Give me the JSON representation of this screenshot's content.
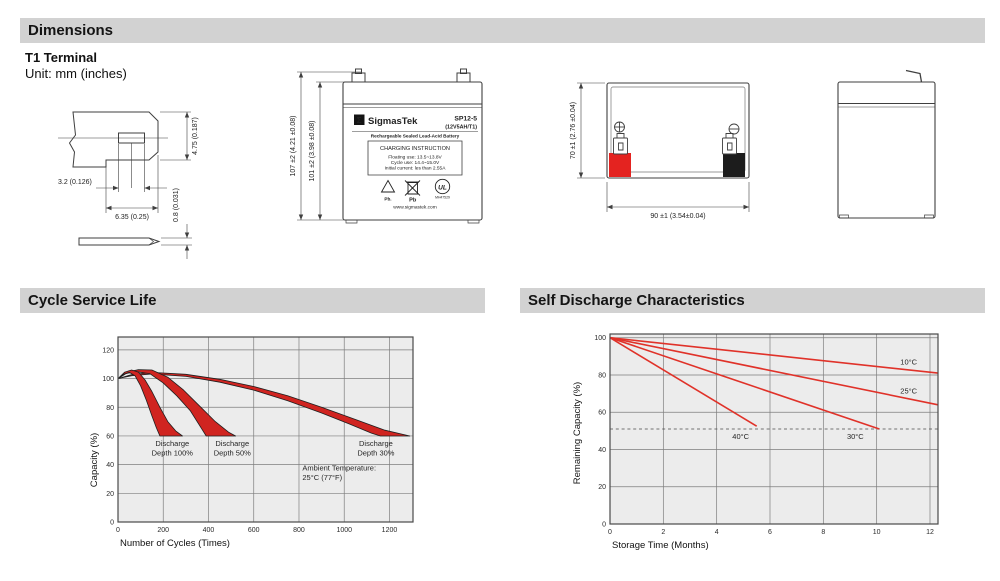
{
  "dimensions": {
    "heading": "Dimensions",
    "terminal_type": "T1 Terminal",
    "unit_note": "Unit: mm (inches)",
    "terminal_drawing": {
      "slot_width": "3.2 (0.126)",
      "tab_width": "6.35 (0.25)",
      "tab_height": "4.75 (0.187)",
      "thickness": "0.8 (0.031)"
    },
    "front_view": {
      "total_height": "107 ±2 (4.21 ±0.08)",
      "case_height": "101 ±2 (3.98 ±0.08)"
    },
    "top_view": {
      "depth": "70 ±1 (2.76 ±0.04)",
      "width": "90 ±1 (3.54±0.04)"
    },
    "battery_label": {
      "logo_glyph": "Σ",
      "brand": "SigmasTek",
      "model": "SP12-5",
      "spec": "(12V5AH/T1)",
      "subtitle": "Rechargeable Sealed Lead-Acid Battery",
      "charging_title": "CHARGING INSTRUCTION",
      "charging_lines": [
        "Floating use: 13.5~13.8V",
        "Cycle use: 14.4~15.0V",
        "Initial current: les than 2.55A"
      ],
      "pb_caption_1": "Pb.",
      "pb_caption_2": "Pb",
      "ul_text": "UL",
      "ul_number": "MH47529",
      "website": "www.sigmastek.com"
    }
  },
  "sections": {
    "cycle_title": "Cycle Service Life",
    "self_title": "Self Discharge Characteristics"
  },
  "chart_data": [
    {
      "id": "cycle_service_life",
      "type": "area",
      "title": "Cycle Service Life",
      "xlabel": "Number of Cycles (Times)",
      "ylabel": "Capacity (%)",
      "xlim": [
        0,
        1304
      ],
      "ylim": [
        0,
        129
      ],
      "xticks": [
        0,
        200,
        400,
        600,
        800,
        1000,
        1200
      ],
      "yticks": [
        0,
        20,
        40,
        60,
        80,
        100,
        120
      ],
      "grid": true,
      "bands": [
        {
          "name": "Discharge Depth 30%",
          "upper": [
            [
              0,
              100
            ],
            [
              60,
              102.8
            ],
            [
              150,
              104.3
            ],
            [
              300,
              103
            ],
            [
              450,
              99.5
            ],
            [
              600,
              94.5
            ],
            [
              750,
              88
            ],
            [
              900,
              80
            ],
            [
              1050,
              71.5
            ],
            [
              1180,
              64
            ],
            [
              1290,
              60
            ]
          ],
          "lower": [
            [
              0,
              100
            ],
            [
              60,
              102
            ],
            [
              150,
              103.2
            ],
            [
              300,
              101.5
            ],
            [
              450,
              97.5
            ],
            [
              600,
              92
            ],
            [
              750,
              84.5
            ],
            [
              900,
              76
            ],
            [
              1020,
              68.5
            ],
            [
              1120,
              62
            ],
            [
              1160,
              60
            ]
          ]
        },
        {
          "name": "Discharge Depth 50%",
          "upper": [
            [
              0,
              100
            ],
            [
              40,
              104.5
            ],
            [
              90,
              106.3
            ],
            [
              150,
              106
            ],
            [
              220,
              101
            ],
            [
              290,
              92
            ],
            [
              360,
              81
            ],
            [
              430,
              70
            ],
            [
              490,
              62.5
            ],
            [
              520,
              60
            ]
          ],
          "lower": [
            [
              0,
              100
            ],
            [
              35,
              103.5
            ],
            [
              80,
              104.8
            ],
            [
              140,
              103.5
            ],
            [
              200,
              97
            ],
            [
              260,
              88
            ],
            [
              320,
              77.5
            ],
            [
              370,
              65
            ],
            [
              390,
              60
            ]
          ]
        },
        {
          "name": "Discharge Depth 100%",
          "upper": [
            [
              0,
              100
            ],
            [
              30,
              104.5
            ],
            [
              60,
              106
            ],
            [
              90,
              104.5
            ],
            [
              120,
              99
            ],
            [
              150,
              91
            ],
            [
              185,
              80
            ],
            [
              220,
              70
            ],
            [
              255,
              63.5
            ],
            [
              285,
              60
            ]
          ],
          "lower": [
            [
              0,
              100
            ],
            [
              25,
              103
            ],
            [
              50,
              104.3
            ],
            [
              75,
              102
            ],
            [
              100,
              95
            ],
            [
              125,
              85
            ],
            [
              150,
              74
            ],
            [
              170,
              65.5
            ],
            [
              185,
              60
            ]
          ]
        }
      ],
      "annotations": [
        {
          "lines": [
            "Discharge",
            "Depth 100%"
          ],
          "x": 240,
          "y": 53,
          "anchor": "middle"
        },
        {
          "lines": [
            "Discharge",
            "Depth 50%"
          ],
          "x": 505,
          "y": 53,
          "anchor": "middle"
        },
        {
          "lines": [
            "Discharge",
            "Depth 30%"
          ],
          "x": 1140,
          "y": 53,
          "anchor": "middle"
        },
        {
          "lines": [
            "Ambient Temperature:",
            "25°C (77°F)"
          ],
          "x": 815,
          "y": 36,
          "anchor": "start"
        }
      ],
      "colors": {
        "plot_bg": "#ececec",
        "grid": "#7e7e7e",
        "border": "#4a4a4a",
        "band_fill": "#d02420",
        "band_stroke": "#1f1f1f"
      }
    },
    {
      "id": "self_discharge",
      "type": "line",
      "title": "Self Discharge Characteristics",
      "xlabel": "Storage Time (Months)",
      "ylabel": "Remaining Capacity (%)",
      "xlim": [
        0,
        12.3
      ],
      "ylim": [
        0,
        102
      ],
      "xticks": [
        0,
        2,
        4,
        6,
        8,
        10,
        12
      ],
      "yticks": [
        0,
        20,
        40,
        60,
        80,
        100
      ],
      "grid": true,
      "series": [
        {
          "name": "10°C",
          "points": [
            [
              0,
              100
            ],
            [
              12.3,
              81
            ]
          ]
        },
        {
          "name": "25°C",
          "points": [
            [
              0,
              100
            ],
            [
              12.3,
              64
            ]
          ]
        },
        {
          "name": "30°C",
          "points": [
            [
              0,
              100
            ],
            [
              10.1,
              51
            ]
          ]
        },
        {
          "name": "40°C",
          "points": [
            [
              0,
              100
            ],
            [
              5.5,
              52.5
            ]
          ]
        }
      ],
      "series_labels": [
        {
          "text": "10°C",
          "x": 11.2,
          "y": 85.5
        },
        {
          "text": "25°C",
          "x": 11.2,
          "y": 70
        },
        {
          "text": "30°C",
          "x": 9.2,
          "y": 45.5
        },
        {
          "text": "40°C",
          "x": 4.9,
          "y": 45.5
        }
      ],
      "dashed_line_y": 51,
      "colors": {
        "plot_bg": "#ececec",
        "grid": "#7e7e7e",
        "border": "#4a4a4a",
        "line": "#e03229",
        "dashed": "#4a4a4a"
      }
    }
  ]
}
